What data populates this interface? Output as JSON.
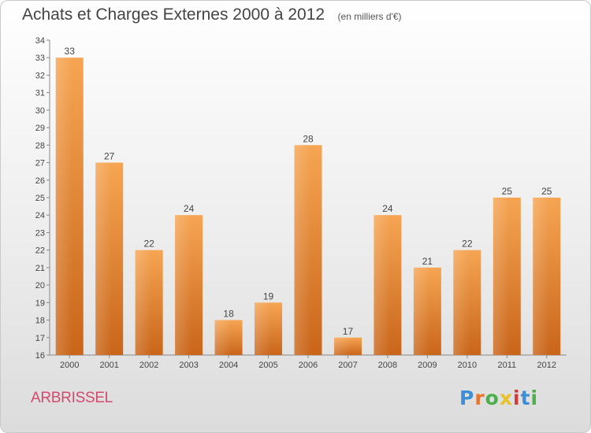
{
  "header": {
    "title": "Achats et Charges Externes 2000 à 2012",
    "subtitle": "(en milliers d'€)"
  },
  "commune": "ARBRISSEL",
  "logo": {
    "text": "Proxiti",
    "letter_colors": [
      "#3a8fd6",
      "#e8742a",
      "#4bb04b",
      "#e8c22a",
      "#d23a3a",
      "#3a8fd6",
      "#4bb04b"
    ]
  },
  "colors": {
    "bar_top": "#f6a553",
    "bar_bottom": "#c9651a",
    "label": "#444444"
  },
  "chart_data": {
    "type": "bar",
    "categories": [
      "2000",
      "2001",
      "2002",
      "2003",
      "2004",
      "2005",
      "2006",
      "2007",
      "2008",
      "2009",
      "2010",
      "2011",
      "2012"
    ],
    "values": [
      33,
      27,
      22,
      24,
      18,
      19,
      28,
      17,
      24,
      21,
      22,
      25,
      25
    ],
    "ylim": [
      16,
      34
    ],
    "yticks": [
      16,
      17,
      18,
      19,
      20,
      21,
      22,
      23,
      24,
      25,
      26,
      27,
      28,
      29,
      30,
      31,
      32,
      33,
      34
    ],
    "grid": false,
    "data_labels": true
  }
}
